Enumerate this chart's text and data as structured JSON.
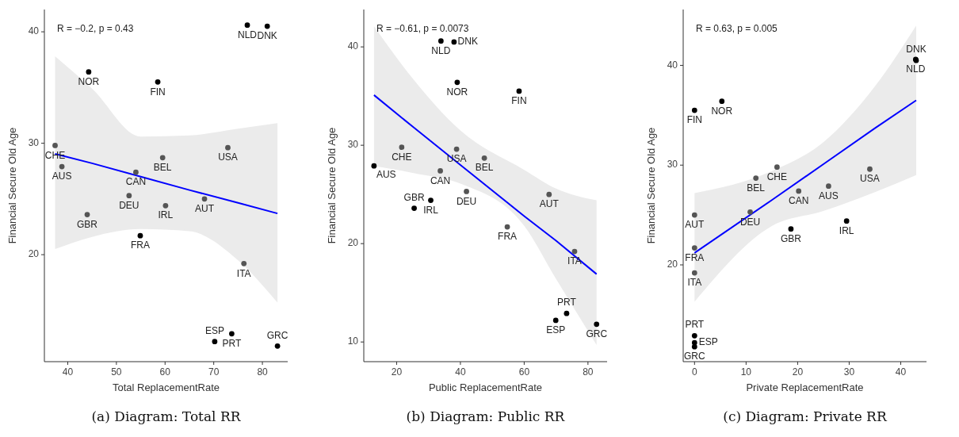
{
  "chart_data": [
    {
      "type": "scatter",
      "title": "(a) Diagram: Total RR",
      "xlabel": "Total ReplacementRate",
      "ylabel": "Financial Secure Old Age",
      "xlim": [
        35.2,
        85.2
      ],
      "ylim": [
        10.4,
        42
      ],
      "xticks": [
        40,
        50,
        60,
        70,
        80
      ],
      "yticks": [
        20,
        30,
        40
      ],
      "grid": false,
      "annotations": [
        "R = −0.2, p = 0.43",
        {
          "text": "NLD",
          "x": 76.9,
          "y": 40.6
        },
        {
          "text": "DNK",
          "x": 81.0,
          "y": 40.5
        },
        {
          "text": "NOR",
          "x": 44.3,
          "y": 36.4
        },
        {
          "text": "FIN",
          "x": 58.5,
          "y": 35.5
        },
        {
          "text": "CHE",
          "x": 37.4,
          "y": 29.8
        },
        {
          "text": "AUS",
          "x": 38.8,
          "y": 27.9
        },
        {
          "text": "BEL",
          "x": 59.5,
          "y": 28.7
        },
        {
          "text": "USA",
          "x": 72.9,
          "y": 29.6
        },
        {
          "text": "CAN",
          "x": 54.0,
          "y": 27.4
        },
        {
          "text": "DEU",
          "x": 52.6,
          "y": 25.3
        },
        {
          "text": "IRL",
          "x": 60.1,
          "y": 24.4
        },
        {
          "text": "AUT",
          "x": 68.1,
          "y": 25.0
        },
        {
          "text": "GBR",
          "x": 44.0,
          "y": 23.6
        },
        {
          "text": "FRA",
          "x": 54.9,
          "y": 21.7
        },
        {
          "text": "ITA",
          "x": 76.2,
          "y": 19.2
        },
        {
          "text": "PRT",
          "x": 73.7,
          "y": 12.9
        },
        {
          "text": "ESP",
          "x": 70.2,
          "y": 12.2
        },
        {
          "text": "GRC",
          "x": 83.1,
          "y": 11.8
        }
      ],
      "series": [
        {
          "marker": "circle",
          "x": [
            76.9,
            81.0,
            44.3,
            58.5,
            37.4,
            38.8,
            59.5,
            72.9,
            54.0,
            52.6,
            60.1,
            68.1,
            44.0,
            54.9,
            76.2,
            73.7,
            70.2,
            83.1
          ],
          "values": [
            40.6,
            40.5,
            36.4,
            35.5,
            29.8,
            27.9,
            28.7,
            29.6,
            27.4,
            25.3,
            24.4,
            25.0,
            23.6,
            21.7,
            19.2,
            12.9,
            12.2,
            11.8
          ],
          "colors": [
            "#000000",
            "#000000",
            "#000000",
            "#000000",
            "#555555",
            "#555555",
            "#555555",
            "#555555",
            "#555555",
            "#555555",
            "#555555",
            "#555555",
            "#555555",
            "#000000",
            "#555555",
            "#000000",
            "#000000",
            "#000000"
          ]
        },
        {
          "type": "line",
          "marker": "none",
          "color": "#0000ff",
          "x": [
            37.4,
            45,
            55,
            65,
            75,
            83.1
          ],
          "values": [
            29.05,
            28.2,
            27.0,
            25.8,
            24.65,
            23.7
          ],
          "lower": [
            20.5,
            21.6,
            22.3,
            22.1,
            19.5,
            15.7
          ],
          "upper": [
            37.8,
            34.9,
            30.6,
            30.7,
            31.3,
            31.8
          ]
        }
      ]
    },
    {
      "type": "scatter",
      "title": "(b) Diagram: Public RR",
      "xlabel": "Public ReplacementRate",
      "ylabel": "Financial Secure Old Age",
      "xlim": [
        9.7,
        86.0
      ],
      "ylim": [
        8.0,
        43.8
      ],
      "xticks": [
        20,
        40,
        60,
        80
      ],
      "yticks": [
        10,
        20,
        30,
        40
      ],
      "grid": false,
      "annotations": [
        "R = −0.61, p = 0.0073",
        {
          "text": "NLD",
          "x": 33.9,
          "y": 40.6
        },
        {
          "text": "DNK",
          "x": 38.0,
          "y": 40.5
        },
        {
          "text": "NOR",
          "x": 39.0,
          "y": 36.4
        },
        {
          "text": "FIN",
          "x": 58.4,
          "y": 35.5
        },
        {
          "text": "CHE",
          "x": 21.6,
          "y": 29.8
        },
        {
          "text": "AUS",
          "x": 12.9,
          "y": 27.9
        },
        {
          "text": "BEL",
          "x": 47.5,
          "y": 28.7
        },
        {
          "text": "USA",
          "x": 38.8,
          "y": 29.6
        },
        {
          "text": "CAN",
          "x": 33.7,
          "y": 27.4
        },
        {
          "text": "DEU",
          "x": 41.9,
          "y": 25.3
        },
        {
          "text": "IRL",
          "x": 30.7,
          "y": 24.4
        },
        {
          "text": "AUT",
          "x": 67.8,
          "y": 25.0
        },
        {
          "text": "GBR",
          "x": 25.5,
          "y": 23.6
        },
        {
          "text": "FRA",
          "x": 54.7,
          "y": 21.7
        },
        {
          "text": "ITA",
          "x": 75.8,
          "y": 19.2
        },
        {
          "text": "PRT",
          "x": 73.3,
          "y": 12.9
        },
        {
          "text": "ESP",
          "x": 69.9,
          "y": 12.2
        },
        {
          "text": "GRC",
          "x": 82.7,
          "y": 11.8
        }
      ],
      "series": [
        {
          "marker": "circle",
          "x": [
            33.9,
            38.0,
            39.0,
            58.4,
            21.6,
            12.9,
            47.5,
            38.8,
            33.7,
            41.9,
            30.7,
            67.8,
            25.5,
            54.7,
            75.8,
            73.3,
            69.9,
            82.7
          ],
          "values": [
            40.6,
            40.5,
            36.4,
            35.5,
            29.8,
            27.9,
            28.7,
            29.6,
            27.4,
            25.3,
            24.4,
            25.0,
            23.6,
            21.7,
            19.2,
            12.9,
            12.2,
            11.8
          ],
          "colors": [
            "#000000",
            "#000000",
            "#000000",
            "#000000",
            "#555555",
            "#000000",
            "#555555",
            "#555555",
            "#555555",
            "#555555",
            "#000000",
            "#555555",
            "#000000",
            "#555555",
            "#555555",
            "#000000",
            "#000000",
            "#000000"
          ]
        },
        {
          "type": "line",
          "marker": "none",
          "color": "#0000ff",
          "x": [
            12.9,
            25,
            40,
            60,
            70,
            82.7
          ],
          "values": [
            35.1,
            31.9,
            28.0,
            22.8,
            20.3,
            16.9
          ],
          "lower": [
            27.9,
            27.2,
            26.1,
            21.8,
            16.4,
            9.7
          ],
          "upper": [
            42.1,
            36.8,
            31.5,
            27.5,
            25.6,
            24.4
          ]
        }
      ]
    },
    {
      "type": "scatter",
      "title": "(c) Diagram: Private RR",
      "xlabel": "Private ReplacementRate",
      "ylabel": "Financial Secure Old Age",
      "xlim": [
        -2.2,
        45.0
      ],
      "ylim": [
        10.3,
        45.6
      ],
      "xticks": [
        0,
        10,
        20,
        30,
        40
      ],
      "yticks": [
        20,
        30,
        40
      ],
      "grid": false,
      "annotations": [
        "R = 0.63, p = 0.005",
        {
          "text": "NLD",
          "x": 42.9,
          "y": 40.6
        },
        {
          "text": "DNK",
          "x": 43.0,
          "y": 40.5
        },
        {
          "text": "NOR",
          "x": 5.3,
          "y": 36.4
        },
        {
          "text": "FIN",
          "x": 0,
          "y": 35.5
        },
        {
          "text": "CHE",
          "x": 16.0,
          "y": 29.8
        },
        {
          "text": "AUS",
          "x": 26.0,
          "y": 27.9
        },
        {
          "text": "BEL",
          "x": 11.9,
          "y": 28.7
        },
        {
          "text": "USA",
          "x": 34.0,
          "y": 29.6
        },
        {
          "text": "CAN",
          "x": 20.2,
          "y": 27.4
        },
        {
          "text": "DEU",
          "x": 10.8,
          "y": 25.3
        },
        {
          "text": "IRL",
          "x": 29.5,
          "y": 24.4
        },
        {
          "text": "AUT",
          "x": 0,
          "y": 25.0
        },
        {
          "text": "GBR",
          "x": 18.7,
          "y": 23.6
        },
        {
          "text": "FRA",
          "x": 0,
          "y": 21.7
        },
        {
          "text": "ITA",
          "x": 0,
          "y": 19.2
        },
        {
          "text": "PRT",
          "x": 0,
          "y": 12.9
        },
        {
          "text": "ESP",
          "x": 0,
          "y": 12.2
        },
        {
          "text": "GRC",
          "x": 0,
          "y": 11.8
        }
      ],
      "series": [
        {
          "marker": "circle",
          "x": [
            42.9,
            43.0,
            5.3,
            0,
            16.0,
            26.0,
            11.9,
            34.0,
            20.2,
            10.8,
            29.5,
            0,
            18.7,
            0,
            0,
            0,
            0,
            0
          ],
          "values": [
            40.6,
            40.5,
            36.4,
            35.5,
            29.8,
            27.9,
            28.7,
            29.6,
            27.4,
            25.3,
            24.4,
            25.0,
            23.6,
            21.7,
            19.2,
            12.9,
            12.2,
            11.8
          ],
          "colors": [
            "#000000",
            "#000000",
            "#000000",
            "#000000",
            "#555555",
            "#555555",
            "#555555",
            "#555555",
            "#555555",
            "#555555",
            "#000000",
            "#555555",
            "#000000",
            "#555555",
            "#555555",
            "#000000",
            "#000000",
            "#000000"
          ]
        },
        {
          "type": "line",
          "marker": "none",
          "color": "#0000ff",
          "x": [
            0,
            15,
            25,
            35,
            43
          ],
          "values": [
            21.2,
            26.5,
            30.1,
            33.7,
            36.5
          ],
          "lower": [
            16.3,
            23.9,
            25.4,
            27.3,
            29.0
          ],
          "upper": [
            27.2,
            29.4,
            32.3,
            37.9,
            44.0
          ]
        }
      ]
    }
  ]
}
